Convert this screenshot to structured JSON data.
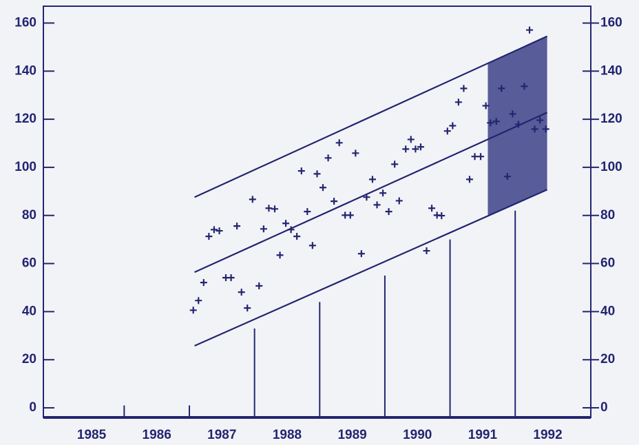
{
  "chart_data": {
    "type": "scatter",
    "color": "#23256f",
    "band_color": "#3d4188",
    "xlim": [
      1984.76,
      1993.16
    ],
    "xticks": [
      {
        "value": 1985.5,
        "label": "1985"
      },
      {
        "value": 1986.5,
        "label": "1986"
      },
      {
        "value": 1987.5,
        "label": "1987"
      },
      {
        "value": 1988.5,
        "label": "1988"
      },
      {
        "value": 1989.5,
        "label": "1989"
      },
      {
        "value": 1990.5,
        "label": "1990"
      },
      {
        "value": 1991.5,
        "label": "1991"
      },
      {
        "value": 1992.5,
        "label": "1992"
      }
    ],
    "ylim": [
      -4,
      167
    ],
    "yticks": [
      0,
      20,
      40,
      60,
      80,
      100,
      120,
      140,
      160
    ],
    "y2lim": [
      -4,
      167
    ],
    "y2ticks": [
      0,
      20,
      40,
      60,
      80,
      100,
      120,
      140,
      160
    ],
    "points": {
      "x": [
        1987.06,
        1987.14,
        1987.22,
        1987.3,
        1987.38,
        1987.46,
        1987.56,
        1987.64,
        1987.73,
        1987.8,
        1987.89,
        1987.97,
        1988.07,
        1988.14,
        1988.22,
        1988.31,
        1988.39,
        1988.48,
        1988.56,
        1988.65,
        1988.72,
        1988.81,
        1988.89,
        1988.96,
        1989.05,
        1989.13,
        1989.22,
        1989.3,
        1989.39,
        1989.47,
        1989.55,
        1989.64,
        1989.72,
        1989.81,
        1989.88,
        1989.97,
        1990.06,
        1990.15,
        1990.22,
        1990.32,
        1990.4,
        1990.47,
        1990.55,
        1990.64,
        1990.72,
        1990.8,
        1990.87,
        1990.96,
        1991.04,
        1991.13,
        1991.21,
        1991.3,
        1991.38,
        1991.47,
        1991.55,
        1991.62,
        1991.71,
        1991.79,
        1991.88,
        1991.96,
        1992.05,
        1992.14,
        1992.22,
        1992.3,
        1992.38,
        1992.47
      ],
      "values": [
        40.6,
        44.6,
        52.1,
        71.3,
        74.1,
        73.6,
        54.1,
        54.1,
        75.6,
        48.1,
        41.5,
        86.7,
        50.7,
        74.4,
        83.0,
        82.7,
        63.5,
        76.7,
        74.1,
        71.3,
        98.5,
        81.6,
        67.5,
        97.3,
        91.6,
        103.9,
        85.9,
        110.2,
        80.1,
        80.1,
        105.9,
        64.1,
        87.6,
        95.0,
        84.4,
        89.3,
        81.6,
        101.3,
        86.1,
        107.6,
        111.6,
        107.6,
        108.5,
        65.3,
        83.0,
        80.1,
        79.9,
        115.1,
        117.3,
        127.1,
        132.8,
        95.0,
        104.5,
        104.5,
        125.6,
        118.5,
        119.1,
        132.8,
        96.2,
        122.2,
        117.9,
        133.7,
        157.1,
        115.9,
        119.6,
        115.9
      ]
    },
    "lines": [
      {
        "x": [
          1987.08,
          1992.49
        ],
        "values": [
          87.6,
          154.5
        ]
      },
      {
        "x": [
          1987.08,
          1992.49
        ],
        "values": [
          56.4,
          122.8
        ]
      },
      {
        "x": [
          1987.08,
          1992.49
        ],
        "values": [
          25.8,
          90.7
        ]
      }
    ],
    "band": {
      "x": [
        1991.58,
        1992.49
      ],
      "lower": [
        79.8,
        90.7
      ],
      "upper": [
        143.2,
        154.5
      ]
    },
    "bars": {
      "x": [
        1986,
        1987,
        1988,
        1989,
        1990,
        1991,
        1992
      ],
      "values": [
        1,
        1,
        33,
        44,
        55,
        70,
        82
      ]
    }
  }
}
